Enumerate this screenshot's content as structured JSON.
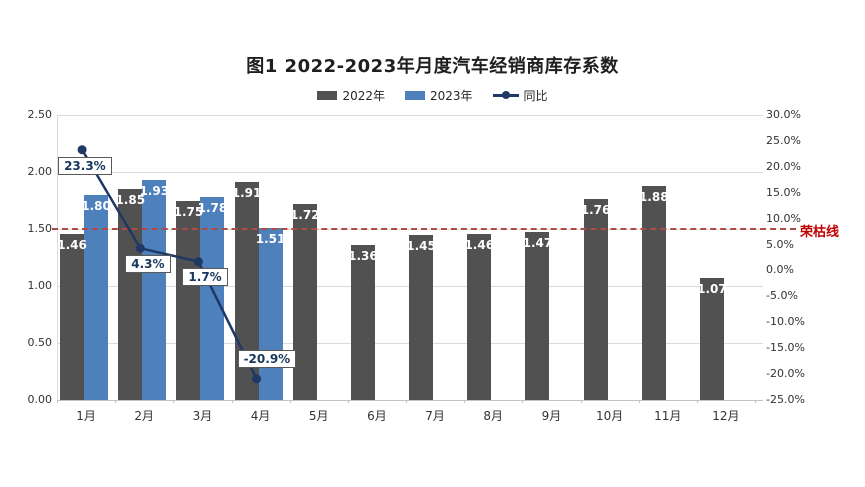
{
  "chart_data": {
    "type": "bar",
    "subtype": "combo-bar-line",
    "title": "图1  2022-2023年月度汽车经销商库存系数",
    "categories": [
      "1月",
      "2月",
      "3月",
      "4月",
      "5月",
      "6月",
      "7月",
      "8月",
      "9月",
      "10月",
      "11月",
      "12月"
    ],
    "series": [
      {
        "name": "2022年",
        "type": "bar",
        "color": "#515151",
        "values": [
          1.46,
          1.85,
          1.75,
          1.91,
          1.72,
          1.36,
          1.45,
          1.46,
          1.47,
          1.76,
          1.88,
          1.07
        ]
      },
      {
        "name": "2023年",
        "type": "bar",
        "color": "#4e81bc",
        "values": [
          1.8,
          1.93,
          1.78,
          1.51,
          null,
          null,
          null,
          null,
          null,
          null,
          null,
          null
        ]
      },
      {
        "name": "同比",
        "type": "line",
        "color": "#1f3864",
        "axis": "right",
        "values": [
          23.3,
          4.3,
          1.7,
          -20.9,
          null,
          null,
          null,
          null,
          null,
          null,
          null,
          null
        ],
        "labels": [
          "23.3%",
          "4.3%",
          "1.7%",
          "-20.9%"
        ],
        "label_placement": [
          "below",
          "below",
          "below",
          "above"
        ]
      }
    ],
    "left_axis": {
      "min": 0,
      "max": 2.5,
      "step": 0.5,
      "tick_labels": [
        "2.50",
        "2.00",
        "1.50",
        "1.00",
        "0.50",
        "0.00"
      ]
    },
    "right_axis": {
      "min": -25,
      "max": 30,
      "step": 5,
      "tick_labels": [
        "30.0%",
        "25.0%",
        "20.0%",
        "15.0%",
        "10.0%",
        "5.0%",
        "0.0%",
        "-5.0%",
        "-10.0%",
        "-15.0%",
        "-20.0%",
        "-25.0%"
      ]
    },
    "reference_line": {
      "value": 1.5,
      "label": "荣枯线",
      "line_color": "#b04a45",
      "label_color": "#c00000"
    },
    "legend": [
      {
        "label": "2022年",
        "swatch": "bar",
        "color": "#515151"
      },
      {
        "label": "2023年",
        "swatch": "bar",
        "color": "#4e81bc"
      },
      {
        "label": "同比",
        "swatch": "line-dot",
        "color": "#1f3864"
      }
    ],
    "legend_position": "top",
    "grid": true
  }
}
